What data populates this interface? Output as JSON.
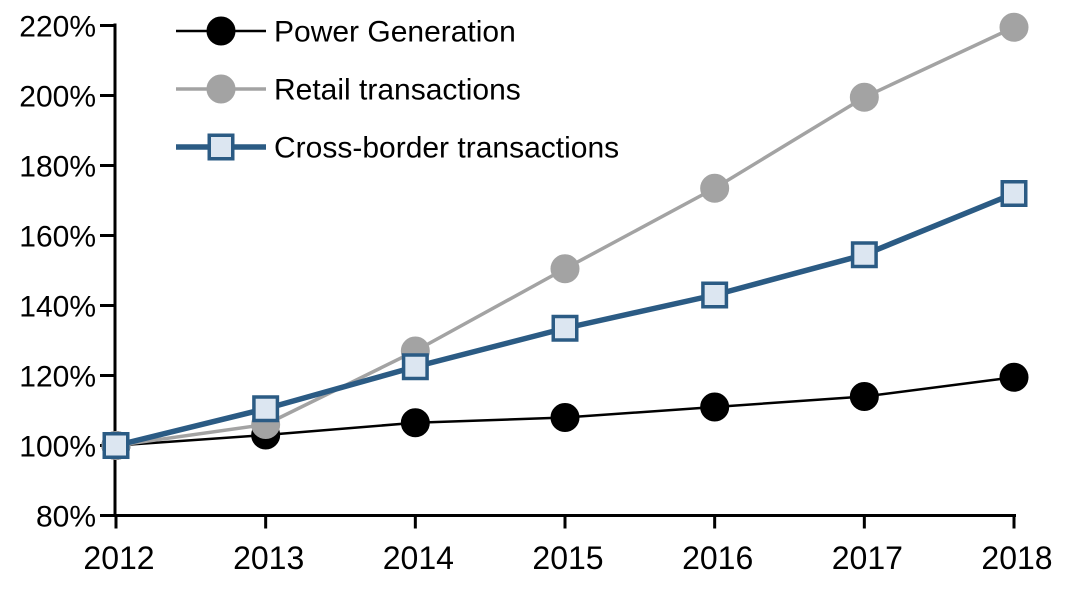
{
  "chart_data": {
    "type": "line",
    "title": "",
    "xlabel": "",
    "ylabel": "",
    "x": [
      2012,
      2013,
      2014,
      2015,
      2016,
      2017,
      2018
    ],
    "x_tick_labels": [
      "2012",
      "2013",
      "2014",
      "2015",
      "2016",
      "2017",
      "2018"
    ],
    "ylim": [
      80,
      220
    ],
    "ytick_step": 20,
    "y_tick_labels": [
      "80%",
      "100%",
      "120%",
      "140%",
      "160%",
      "180%",
      "200%",
      "220%"
    ],
    "grid": "off",
    "legend_position": "top-left-inside",
    "axis_color": "#000000",
    "series": [
      {
        "name": "Power Generation",
        "marker": "circle",
        "line_color": "#000000",
        "marker_fill": "#000000",
        "marker_stroke": "#000000",
        "line_width": 2.5,
        "values": [
          100,
          103,
          106.5,
          108,
          111,
          114,
          119.5
        ]
      },
      {
        "name": "Retail transactions",
        "marker": "circle",
        "line_color": "#a3a3a3",
        "marker_fill": "#a3a3a3",
        "marker_stroke": "#a3a3a3",
        "line_width": 3.5,
        "values": [
          100,
          106,
          127,
          150.5,
          173.5,
          199.5,
          219.5
        ]
      },
      {
        "name": "Cross-border transactions",
        "marker": "square",
        "line_color": "#2b5b84",
        "marker_fill": "#dce6f1",
        "marker_stroke": "#2b5b84",
        "line_width": 5.5,
        "values": [
          100,
          110.5,
          122.5,
          133.5,
          143,
          154.5,
          172
        ]
      }
    ]
  }
}
